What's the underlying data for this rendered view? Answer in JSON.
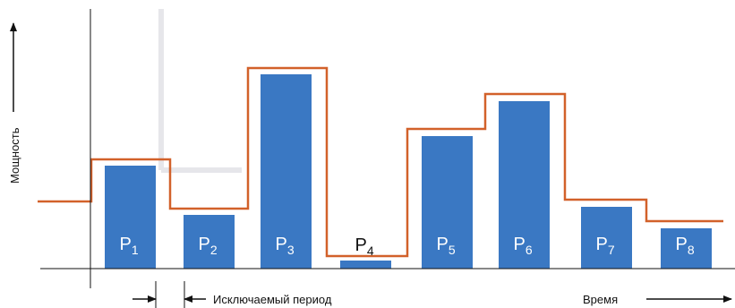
{
  "chart_data": {
    "type": "bar",
    "ylabel": "Мощность",
    "xlabel": "Время",
    "annotation": "Исключаемый период",
    "categories": [
      "P1",
      "P2",
      "P3",
      "P4",
      "P5",
      "P6",
      "P7",
      "P8"
    ],
    "labels": [
      {
        "base": "P",
        "sub": "1"
      },
      {
        "base": "P",
        "sub": "2"
      },
      {
        "base": "P",
        "sub": "3"
      },
      {
        "base": "P",
        "sub": "4"
      },
      {
        "base": "P",
        "sub": "5"
      },
      {
        "base": "P",
        "sub": "6"
      },
      {
        "base": "P",
        "sub": "7"
      },
      {
        "base": "P",
        "sub": "8"
      }
    ],
    "values": [
      115,
      60,
      217,
      9,
      148,
      187,
      69,
      45
    ],
    "envelope": {
      "start_level": 75,
      "levels": [
        122,
        67,
        224,
        14,
        156,
        195,
        77,
        53
      ]
    },
    "ylim": [
      0,
      240
    ],
    "colors": {
      "bar": "#3a78c3",
      "envelope": "#d2612a",
      "axis": "#111111"
    }
  }
}
